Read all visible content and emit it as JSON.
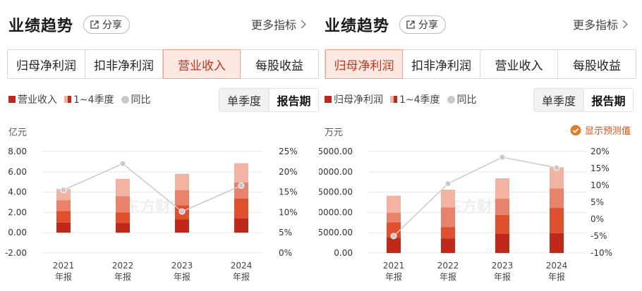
{
  "left": {
    "title": "业绩趋势",
    "share_label": "分享",
    "more_label": "更多指标",
    "tabs": [
      "归母净利润",
      "扣非净利润",
      "营业收入",
      "每股收益"
    ],
    "active_tab": 2,
    "legend": [
      "营业收入",
      "1~4季度",
      "同比"
    ],
    "period": [
      "单季度",
      "报告期"
    ],
    "unit": "亿元",
    "watermark": "东方财富"
  },
  "right": {
    "title": "业绩趋势",
    "share_label": "分享",
    "more_label": "更多指标",
    "tabs": [
      "归母净利润",
      "扣非净利润",
      "营业收入",
      "每股收益"
    ],
    "active_tab": 0,
    "legend": [
      "归母净利润",
      "1~4季度",
      "同比"
    ],
    "period": [
      "单季度",
      "报告期"
    ],
    "unit": "万元",
    "forecast_label": "显示预测值",
    "watermark": "东方财富"
  },
  "colors": {
    "q1": "#c0281a",
    "q2": "#e0502c",
    "q3": "#e9826a",
    "q4": "#f2b3a2",
    "yoy": "#c9c9c9",
    "accent": "#c8351f"
  },
  "chart_data": [
    {
      "type": "bar",
      "stacked": true,
      "categories": [
        "2021\n年报",
        "2022\n年报",
        "2023\n年报",
        "2024\n年报"
      ],
      "series": [
        {
          "name": "Q1",
          "values": [
            1.0,
            0.95,
            1.3,
            1.4
          ]
        },
        {
          "name": "Q2",
          "values": [
            1.15,
            1.05,
            1.4,
            1.95
          ]
        },
        {
          "name": "Q3",
          "values": [
            1.05,
            1.6,
            1.5,
            1.6
          ]
        },
        {
          "name": "Q4",
          "values": [
            1.1,
            1.7,
            1.6,
            1.9
          ]
        }
      ],
      "totals": [
        4.3,
        5.3,
        5.8,
        6.85
      ],
      "yoy": {
        "name": "同比",
        "values": [
          15.5,
          22.0,
          10.2,
          16.6
        ]
      },
      "y_left": {
        "ticks": [
          "-2.00",
          "0.00",
          "2.00",
          "4.00",
          "6.00",
          "8.00"
        ],
        "range": [
          -2,
          8
        ]
      },
      "y_right": {
        "ticks": [
          "0%",
          "5%",
          "10%",
          "15%",
          "20%",
          "25%"
        ],
        "range": [
          0,
          25
        ]
      }
    },
    {
      "type": "bar",
      "stacked": true,
      "categories": [
        "2021\n年报",
        "2022\n年报",
        "2023\n年报",
        "2024\n年报"
      ],
      "series": [
        {
          "name": "Q1",
          "values": [
            3800,
            3600,
            4800,
            4900
          ]
        },
        {
          "name": "Q2",
          "values": [
            3800,
            2800,
            4600,
            6200
          ]
        },
        {
          "name": "Q3",
          "values": [
            2300,
            4800,
            4000,
            4800
          ]
        },
        {
          "name": "Q4",
          "values": [
            4200,
            4400,
            5000,
            5200
          ]
        }
      ],
      "totals": [
        14100,
        15600,
        18400,
        21100
      ],
      "yoy": {
        "name": "同比",
        "values": [
          -5.0,
          10.5,
          18.3,
          15.2
        ]
      },
      "y_left": {
        "ticks": [
          "0.00",
          "5000.00",
          "10000.00",
          "15000.00",
          "20000.00",
          "25000.00"
        ],
        "range": [
          0,
          25000
        ]
      },
      "y_right": {
        "ticks": [
          "-10%",
          "-5%",
          "0%",
          "5%",
          "10%",
          "15%",
          "20%"
        ],
        "range": [
          -10,
          20
        ]
      }
    }
  ]
}
